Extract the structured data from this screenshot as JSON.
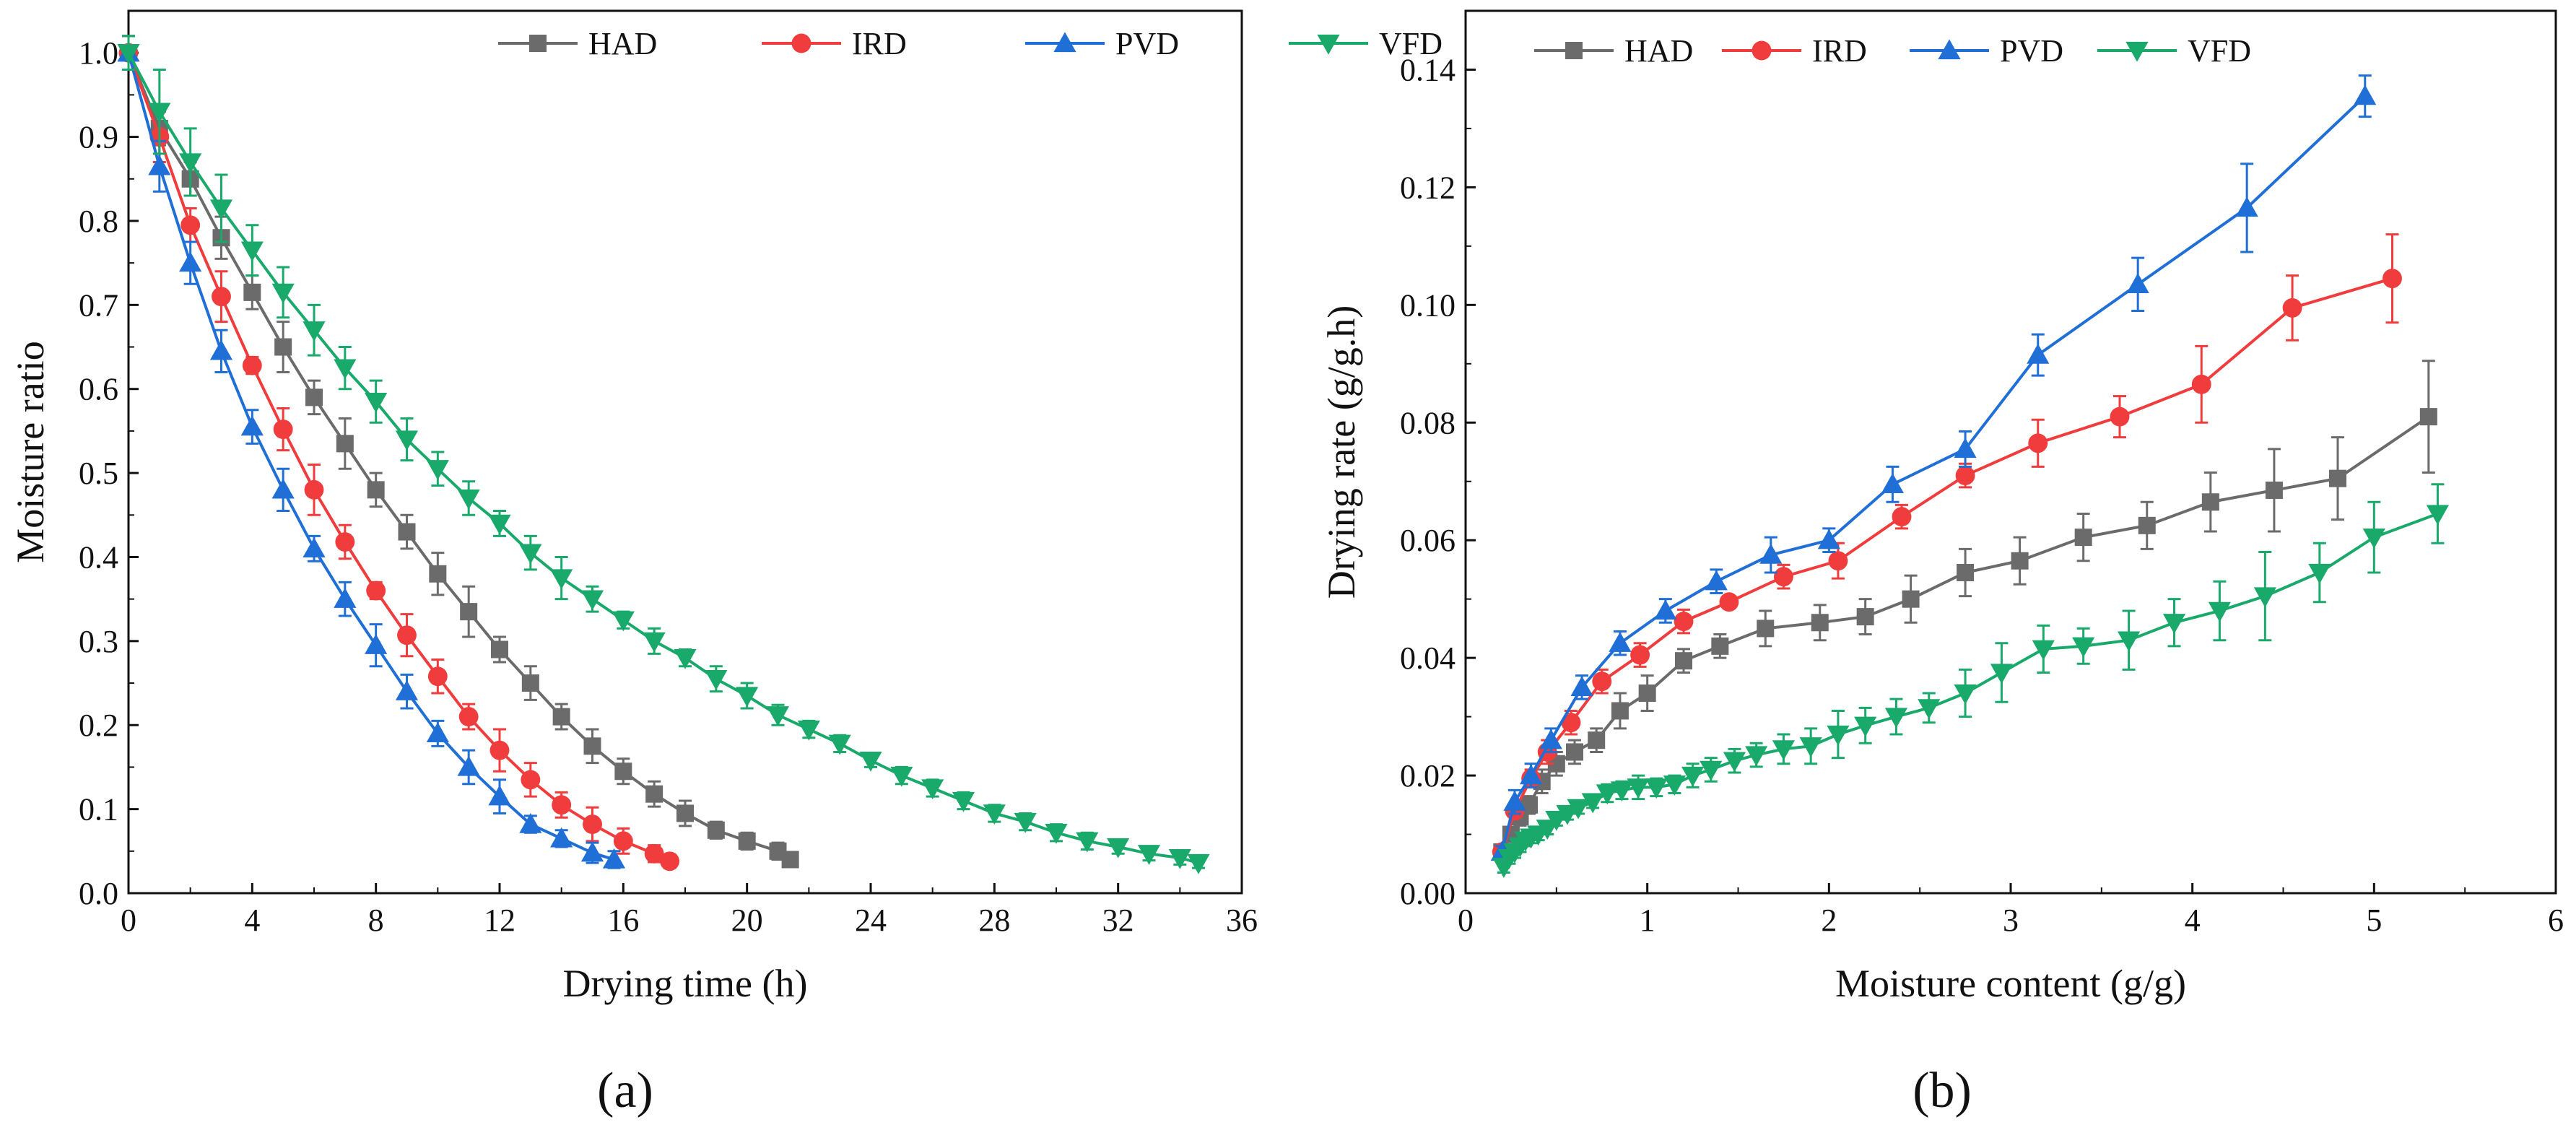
{
  "colors": {
    "HAD": "#6b6b6b",
    "IRD": "#f03c3c",
    "PVD": "#1f6fd6",
    "VFD": "#19a96b"
  },
  "chart_data": [
    {
      "type": "line",
      "panel_label": "(a)",
      "title": "",
      "xlabel": "Drying time (h)",
      "ylabel": "Moisture ratio",
      "xlim": [
        0,
        36
      ],
      "ylim": [
        0,
        1.05
      ],
      "xticks": [
        0,
        4,
        8,
        12,
        16,
        20,
        24,
        28,
        32,
        36
      ],
      "yticks": [
        0.0,
        0.1,
        0.2,
        0.3,
        0.4,
        0.5,
        0.6,
        0.7,
        0.8,
        0.9,
        1.0
      ],
      "legend": [
        "HAD",
        "IRD",
        "PVD",
        "VFD"
      ],
      "legend_position": "top-right",
      "series": [
        {
          "name": "HAD",
          "marker": "square",
          "x": [
            0,
            1,
            2,
            3,
            4,
            5,
            6,
            7,
            8,
            9,
            10,
            11,
            12,
            13,
            14,
            15,
            16,
            17,
            18,
            19,
            20,
            21,
            21.4
          ],
          "y": [
            1.0,
            0.91,
            0.85,
            0.78,
            0.715,
            0.65,
            0.59,
            0.535,
            0.48,
            0.43,
            0.38,
            0.335,
            0.29,
            0.25,
            0.21,
            0.175,
            0.145,
            0.118,
            0.095,
            0.075,
            0.062,
            0.05,
            0.04
          ],
          "err": [
            0.02,
            0.02,
            0.02,
            0.025,
            0.02,
            0.03,
            0.02,
            0.03,
            0.02,
            0.02,
            0.025,
            0.03,
            0.015,
            0.02,
            0.015,
            0.02,
            0.015,
            0.015,
            0.015,
            0.01,
            0.01,
            0.01,
            0.008
          ]
        },
        {
          "name": "IRD",
          "marker": "circle",
          "x": [
            0,
            1,
            2,
            3,
            4,
            5,
            6,
            7,
            8,
            9,
            10,
            11,
            12,
            13,
            14,
            15,
            16,
            17,
            17.5
          ],
          "y": [
            1.0,
            0.9,
            0.795,
            0.71,
            0.628,
            0.552,
            0.48,
            0.418,
            0.36,
            0.307,
            0.258,
            0.21,
            0.17,
            0.135,
            0.105,
            0.082,
            0.062,
            0.047,
            0.038
          ],
          "err": [
            0.02,
            0.03,
            0.02,
            0.03,
            0.01,
            0.025,
            0.03,
            0.02,
            0.01,
            0.025,
            0.02,
            0.015,
            0.025,
            0.02,
            0.015,
            0.02,
            0.015,
            0.01,
            0.008
          ]
        },
        {
          "name": "PVD",
          "marker": "triangle-up",
          "x": [
            0,
            1,
            2,
            3,
            4,
            5,
            6,
            7,
            8,
            9,
            10,
            11,
            12,
            13,
            14,
            15,
            15.7
          ],
          "y": [
            1.0,
            0.865,
            0.75,
            0.645,
            0.555,
            0.48,
            0.41,
            0.35,
            0.295,
            0.24,
            0.19,
            0.15,
            0.115,
            0.082,
            0.065,
            0.048,
            0.04
          ],
          "err": [
            0.02,
            0.03,
            0.025,
            0.025,
            0.02,
            0.025,
            0.015,
            0.02,
            0.025,
            0.02,
            0.015,
            0.02,
            0.02,
            0.01,
            0.01,
            0.012,
            0.01
          ]
        },
        {
          "name": "VFD",
          "marker": "triangle-down",
          "x": [
            0,
            1,
            2,
            3,
            4,
            5,
            6,
            7,
            8,
            9,
            10,
            11,
            12,
            13,
            14,
            15,
            16,
            17,
            18,
            19,
            20,
            21,
            22,
            23,
            24,
            25,
            26,
            27,
            28,
            29,
            30,
            31,
            32,
            33,
            34,
            34.6
          ],
          "y": [
            1.0,
            0.93,
            0.87,
            0.815,
            0.765,
            0.715,
            0.67,
            0.625,
            0.585,
            0.54,
            0.505,
            0.47,
            0.44,
            0.405,
            0.375,
            0.35,
            0.325,
            0.3,
            0.28,
            0.255,
            0.235,
            0.212,
            0.195,
            0.178,
            0.158,
            0.14,
            0.125,
            0.11,
            0.095,
            0.085,
            0.072,
            0.062,
            0.055,
            0.047,
            0.042,
            0.036
          ],
          "err": [
            0.02,
            0.05,
            0.04,
            0.04,
            0.03,
            0.03,
            0.03,
            0.025,
            0.025,
            0.025,
            0.02,
            0.02,
            0.015,
            0.02,
            0.025,
            0.015,
            0.01,
            0.015,
            0.01,
            0.015,
            0.015,
            0.012,
            0.01,
            0.01,
            0.008,
            0.01,
            0.01,
            0.01,
            0.01,
            0.01,
            0.01,
            0.01,
            0.008,
            0.008,
            0.008,
            0.006
          ]
        }
      ]
    },
    {
      "type": "line",
      "panel_label": "(b)",
      "title": "",
      "xlabel": "Moisture content (g/g)",
      "ylabel": "Drying rate (g/g.h)",
      "xlim": [
        0,
        6
      ],
      "ylim": [
        0,
        0.15
      ],
      "xticks": [
        0,
        1,
        2,
        3,
        4,
        5,
        6
      ],
      "yticks": [
        0.0,
        0.02,
        0.04,
        0.06,
        0.08,
        0.1,
        0.12,
        0.14
      ],
      "legend": [
        "HAD",
        "IRD",
        "PVD",
        "VFD"
      ],
      "legend_position": "top-left",
      "series": [
        {
          "name": "HAD",
          "marker": "square",
          "x": [
            0.2,
            0.25,
            0.3,
            0.35,
            0.42,
            0.5,
            0.6,
            0.72,
            0.85,
            1.0,
            1.2,
            1.4,
            1.65,
            1.95,
            2.2,
            2.45,
            2.75,
            3.05,
            3.4,
            3.75,
            4.1,
            4.45,
            4.8,
            5.3
          ],
          "y": [
            0.007,
            0.01,
            0.013,
            0.015,
            0.019,
            0.022,
            0.024,
            0.026,
            0.031,
            0.034,
            0.0395,
            0.042,
            0.045,
            0.046,
            0.047,
            0.05,
            0.0545,
            0.0565,
            0.0605,
            0.0625,
            0.0665,
            0.0685,
            0.0705,
            0.081
          ],
          "err": [
            0.001,
            0.001,
            0.0015,
            0.0015,
            0.002,
            0.002,
            0.002,
            0.002,
            0.003,
            0.003,
            0.002,
            0.002,
            0.003,
            0.003,
            0.003,
            0.004,
            0.004,
            0.004,
            0.004,
            0.004,
            0.005,
            0.007,
            0.007,
            0.0095
          ]
        },
        {
          "name": "IRD",
          "marker": "circle",
          "x": [
            0.2,
            0.27,
            0.36,
            0.45,
            0.58,
            0.75,
            0.96,
            1.2,
            1.45,
            1.75,
            2.05,
            2.4,
            2.75,
            3.15,
            3.6,
            4.05,
            4.55,
            5.1
          ],
          "y": [
            0.007,
            0.014,
            0.0195,
            0.024,
            0.029,
            0.036,
            0.0405,
            0.0462,
            0.0495,
            0.0538,
            0.0565,
            0.064,
            0.071,
            0.0765,
            0.081,
            0.0865,
            0.0995,
            0.1045
          ],
          "err": [
            0.001,
            0.001,
            0.0015,
            0.002,
            0.002,
            0.002,
            0.002,
            0.002,
            0.001,
            0.002,
            0.003,
            0.002,
            0.002,
            0.004,
            0.0035,
            0.0065,
            0.0055,
            0.0075
          ]
        },
        {
          "name": "PVD",
          "marker": "triangle-up",
          "x": [
            0.2,
            0.27,
            0.36,
            0.47,
            0.64,
            0.85,
            1.1,
            1.38,
            1.68,
            2.0,
            2.35,
            2.75,
            3.15,
            3.7,
            4.3,
            4.95
          ],
          "y": [
            0.007,
            0.0155,
            0.02,
            0.026,
            0.035,
            0.0425,
            0.048,
            0.053,
            0.0575,
            0.06,
            0.0695,
            0.0755,
            0.0915,
            0.1035,
            0.1165,
            0.1355
          ],
          "err": [
            0.001,
            0.002,
            0.002,
            0.002,
            0.002,
            0.002,
            0.002,
            0.002,
            0.003,
            0.002,
            0.003,
            0.003,
            0.0035,
            0.0045,
            0.0075,
            0.0035
          ]
        },
        {
          "name": "VFD",
          "marker": "triangle-down",
          "x": [
            0.21,
            0.24,
            0.27,
            0.3,
            0.33,
            0.36,
            0.4,
            0.45,
            0.5,
            0.56,
            0.62,
            0.7,
            0.78,
            0.86,
            0.95,
            1.05,
            1.15,
            1.25,
            1.35,
            1.48,
            1.6,
            1.75,
            1.9,
            2.05,
            2.2,
            2.37,
            2.55,
            2.75,
            2.95,
            3.18,
            3.4,
            3.65,
            3.9,
            4.15,
            4.4,
            4.7,
            5.0,
            5.35
          ],
          "y": [
            0.0045,
            0.006,
            0.007,
            0.008,
            0.009,
            0.0095,
            0.01,
            0.011,
            0.0125,
            0.0135,
            0.0145,
            0.0155,
            0.017,
            0.0175,
            0.018,
            0.018,
            0.0185,
            0.02,
            0.021,
            0.0225,
            0.0235,
            0.0245,
            0.025,
            0.027,
            0.0285,
            0.03,
            0.0315,
            0.034,
            0.0375,
            0.0415,
            0.042,
            0.043,
            0.046,
            0.048,
            0.0505,
            0.0545,
            0.0605,
            0.0645
          ],
          "err": [
            0.001,
            0.001,
            0.001,
            0.001,
            0.001,
            0.001,
            0.001,
            0.001,
            0.001,
            0.001,
            0.001,
            0.001,
            0.0015,
            0.0015,
            0.002,
            0.0015,
            0.0015,
            0.002,
            0.002,
            0.002,
            0.002,
            0.0025,
            0.003,
            0.004,
            0.003,
            0.003,
            0.0025,
            0.004,
            0.005,
            0.004,
            0.003,
            0.005,
            0.004,
            0.005,
            0.0075,
            0.005,
            0.006,
            0.005
          ]
        }
      ]
    }
  ]
}
